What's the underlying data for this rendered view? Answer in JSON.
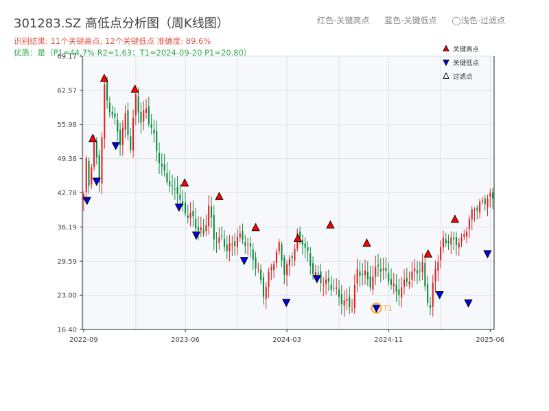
{
  "header": {
    "title": "301283.SZ 高低点分析图（周K线图）",
    "legend_note": [
      "红色-关键高点",
      "蓝色-关键低点",
      "◯浅色-过滤点"
    ],
    "result_line": "识别结果: 11个关键高点, 12个关键低点  准确度: 89.6%",
    "quality_line": "优质：是（P1=44.7%  R2=1.63；T1=2024-09-20 P1=20.80）"
  },
  "colors": {
    "up": "#e02020",
    "down": "#0a8a3c",
    "high_marker": "#ff0000",
    "low_marker": "#0000dd",
    "annotation": "#f5a623",
    "text_result": "#e05a4a",
    "text_quality": "#2ea84f",
    "plot_bg": "#f6f8fb",
    "grid": "#dde2ea"
  },
  "chart_data": {
    "type": "candlestick",
    "title": "301283.SZ 高低点分析图（周K线图）",
    "ylim": [
      16.4,
      69.17
    ],
    "y_ticks": [
      "16.40",
      "23.00",
      "29.59",
      "36.19",
      "42.78",
      "49.38",
      "55.98",
      "62.57",
      "69.17"
    ],
    "x_ticks": [
      {
        "label": "2022-09",
        "i": 0
      },
      {
        "label": "2023-06",
        "i": 39
      },
      {
        "label": "2024-03",
        "i": 78
      },
      {
        "label": "2024-11",
        "i": 117
      },
      {
        "label": "2025-06",
        "i": 156
      }
    ],
    "x_minor_ticks": [
      20,
      59,
      98,
      137
    ],
    "weeks": 158,
    "keyframes": [
      [
        0,
        42
      ],
      [
        1,
        48
      ],
      [
        2,
        44
      ],
      [
        4,
        53
      ],
      [
        6,
        46
      ],
      [
        8,
        63
      ],
      [
        9,
        60
      ],
      [
        12,
        56
      ],
      [
        14,
        53
      ],
      [
        16,
        58
      ],
      [
        18,
        52
      ],
      [
        20,
        61
      ],
      [
        22,
        56
      ],
      [
        24,
        59
      ],
      [
        27,
        54
      ],
      [
        30,
        47
      ],
      [
        34,
        43
      ],
      [
        36,
        44
      ],
      [
        38,
        40
      ],
      [
        41,
        38
      ],
      [
        43,
        36
      ],
      [
        46,
        35
      ],
      [
        48,
        41
      ],
      [
        50,
        34
      ],
      [
        53,
        33
      ],
      [
        55,
        32
      ],
      [
        57,
        33
      ],
      [
        59,
        35
      ],
      [
        62,
        33
      ],
      [
        65,
        30
      ],
      [
        67,
        28
      ],
      [
        69,
        24
      ],
      [
        72,
        28
      ],
      [
        75,
        32
      ],
      [
        77,
        28
      ],
      [
        79,
        30
      ],
      [
        82,
        34
      ],
      [
        84,
        33
      ],
      [
        87,
        29
      ],
      [
        90,
        27
      ],
      [
        93,
        25
      ],
      [
        96,
        24
      ],
      [
        98,
        23
      ],
      [
        101,
        22
      ],
      [
        103,
        20.8
      ],
      [
        105,
        27
      ],
      [
        108,
        27
      ],
      [
        110,
        26
      ],
      [
        113,
        29
      ],
      [
        115,
        27
      ],
      [
        117,
        26
      ],
      [
        120,
        24
      ],
      [
        122,
        25
      ],
      [
        125,
        26
      ],
      [
        127,
        27
      ],
      [
        130,
        29
      ],
      [
        131,
        25
      ],
      [
        133,
        21
      ],
      [
        135,
        28
      ],
      [
        138,
        33
      ],
      [
        140,
        34
      ],
      [
        143,
        34
      ],
      [
        145,
        33
      ],
      [
        148,
        37
      ],
      [
        150,
        40
      ],
      [
        152,
        41
      ],
      [
        155,
        42
      ],
      [
        157,
        41
      ]
    ],
    "key_highs": [
      {
        "i": 4,
        "price": 53.0
      },
      {
        "i": 10,
        "price": 64.6
      },
      {
        "i": 26,
        "price": 62.5
      },
      {
        "i": 52,
        "price": 44.4
      },
      {
        "i": 70,
        "price": 41.8
      },
      {
        "i": 89,
        "price": 35.8
      },
      {
        "i": 111,
        "price": 33.7
      },
      {
        "i": 128,
        "price": 36.3
      },
      {
        "i": 147,
        "price": 32.8
      },
      {
        "i": 179,
        "price": 30.7
      },
      {
        "i": 193,
        "price": 37.4
      }
    ],
    "key_lows": [
      {
        "i": 1,
        "price": 41.6
      },
      {
        "i": 6,
        "price": 45.3
      },
      {
        "i": 16,
        "price": 52.2
      },
      {
        "i": 49,
        "price": 40.3
      },
      {
        "i": 58,
        "price": 34.9
      },
      {
        "i": 83,
        "price": 30.0
      },
      {
        "i": 105,
        "price": 21.9
      },
      {
        "i": 121,
        "price": 26.5
      },
      {
        "i": 152,
        "price": 20.8
      },
      {
        "i": 185,
        "price": 23.4
      },
      {
        "i": 200,
        "price": 21.8
      },
      {
        "i": 210,
        "price": 31.3
      }
    ],
    "annotation": {
      "label": "T1",
      "price": 20.8
    },
    "legend": {
      "position": "top-right",
      "items": [
        {
          "label": "关键高点",
          "marker": "triangle-up",
          "color": "#ff0000"
        },
        {
          "label": "关键低点",
          "marker": "triangle-down",
          "color": "#0000dd"
        },
        {
          "label": "过滤点",
          "marker": "triangle-up-outline",
          "color": "#ffffff"
        }
      ]
    }
  }
}
